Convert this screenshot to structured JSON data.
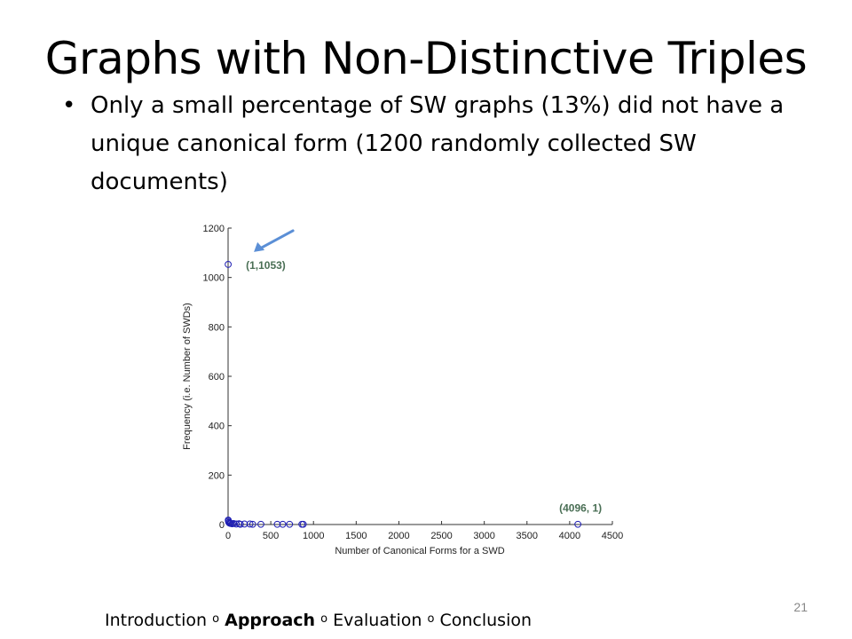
{
  "slide": {
    "title": "Graphs with Non-Distinctive Triples",
    "bullet": "Only a small percentage of SW graphs (13%) did not have a unique canonical form (1200 randomly collected SW documents)",
    "bullet_symbol": "•",
    "page_number": "21"
  },
  "footer": {
    "items": [
      "Introduction",
      "Approach",
      "Evaluation",
      "Conclusion"
    ],
    "separator": "o",
    "active": "Approach"
  },
  "chart_data": {
    "type": "scatter",
    "xlabel": "Number of Canonical Forms for a SWD",
    "ylabel": "Frequency (i.e. Number of SWDs)",
    "xlim": [
      0,
      4500
    ],
    "ylim": [
      0,
      1200
    ],
    "xticks": [
      0,
      500,
      1000,
      1500,
      2000,
      2500,
      3000,
      3500,
      4000,
      4500
    ],
    "yticks": [
      0,
      200,
      400,
      600,
      800,
      1000,
      1200
    ],
    "grid": false,
    "marker": "circle-open",
    "marker_color": "#1f1fb4",
    "arrow_color": "#5b8fd6",
    "annotation_color": "#4a6f55",
    "points": [
      {
        "x": 1,
        "y": 1053
      },
      {
        "x": 2,
        "y": 18
      },
      {
        "x": 4,
        "y": 14
      },
      {
        "x": 8,
        "y": 9
      },
      {
        "x": 16,
        "y": 6
      },
      {
        "x": 24,
        "y": 5
      },
      {
        "x": 32,
        "y": 4
      },
      {
        "x": 48,
        "y": 3
      },
      {
        "x": 64,
        "y": 4
      },
      {
        "x": 96,
        "y": 2
      },
      {
        "x": 128,
        "y": 3
      },
      {
        "x": 144,
        "y": 1
      },
      {
        "x": 192,
        "y": 2
      },
      {
        "x": 256,
        "y": 2
      },
      {
        "x": 288,
        "y": 1
      },
      {
        "x": 384,
        "y": 1
      },
      {
        "x": 576,
        "y": 1
      },
      {
        "x": 640,
        "y": 1
      },
      {
        "x": 720,
        "y": 1
      },
      {
        "x": 864,
        "y": 1
      },
      {
        "x": 880,
        "y": 1
      },
      {
        "x": 4096,
        "y": 1
      }
    ],
    "annotations": [
      {
        "text": "(1,1053)",
        "x": 1,
        "y": 1053
      },
      {
        "text": "(4096, 1)",
        "x": 4096,
        "y": 1
      }
    ]
  }
}
